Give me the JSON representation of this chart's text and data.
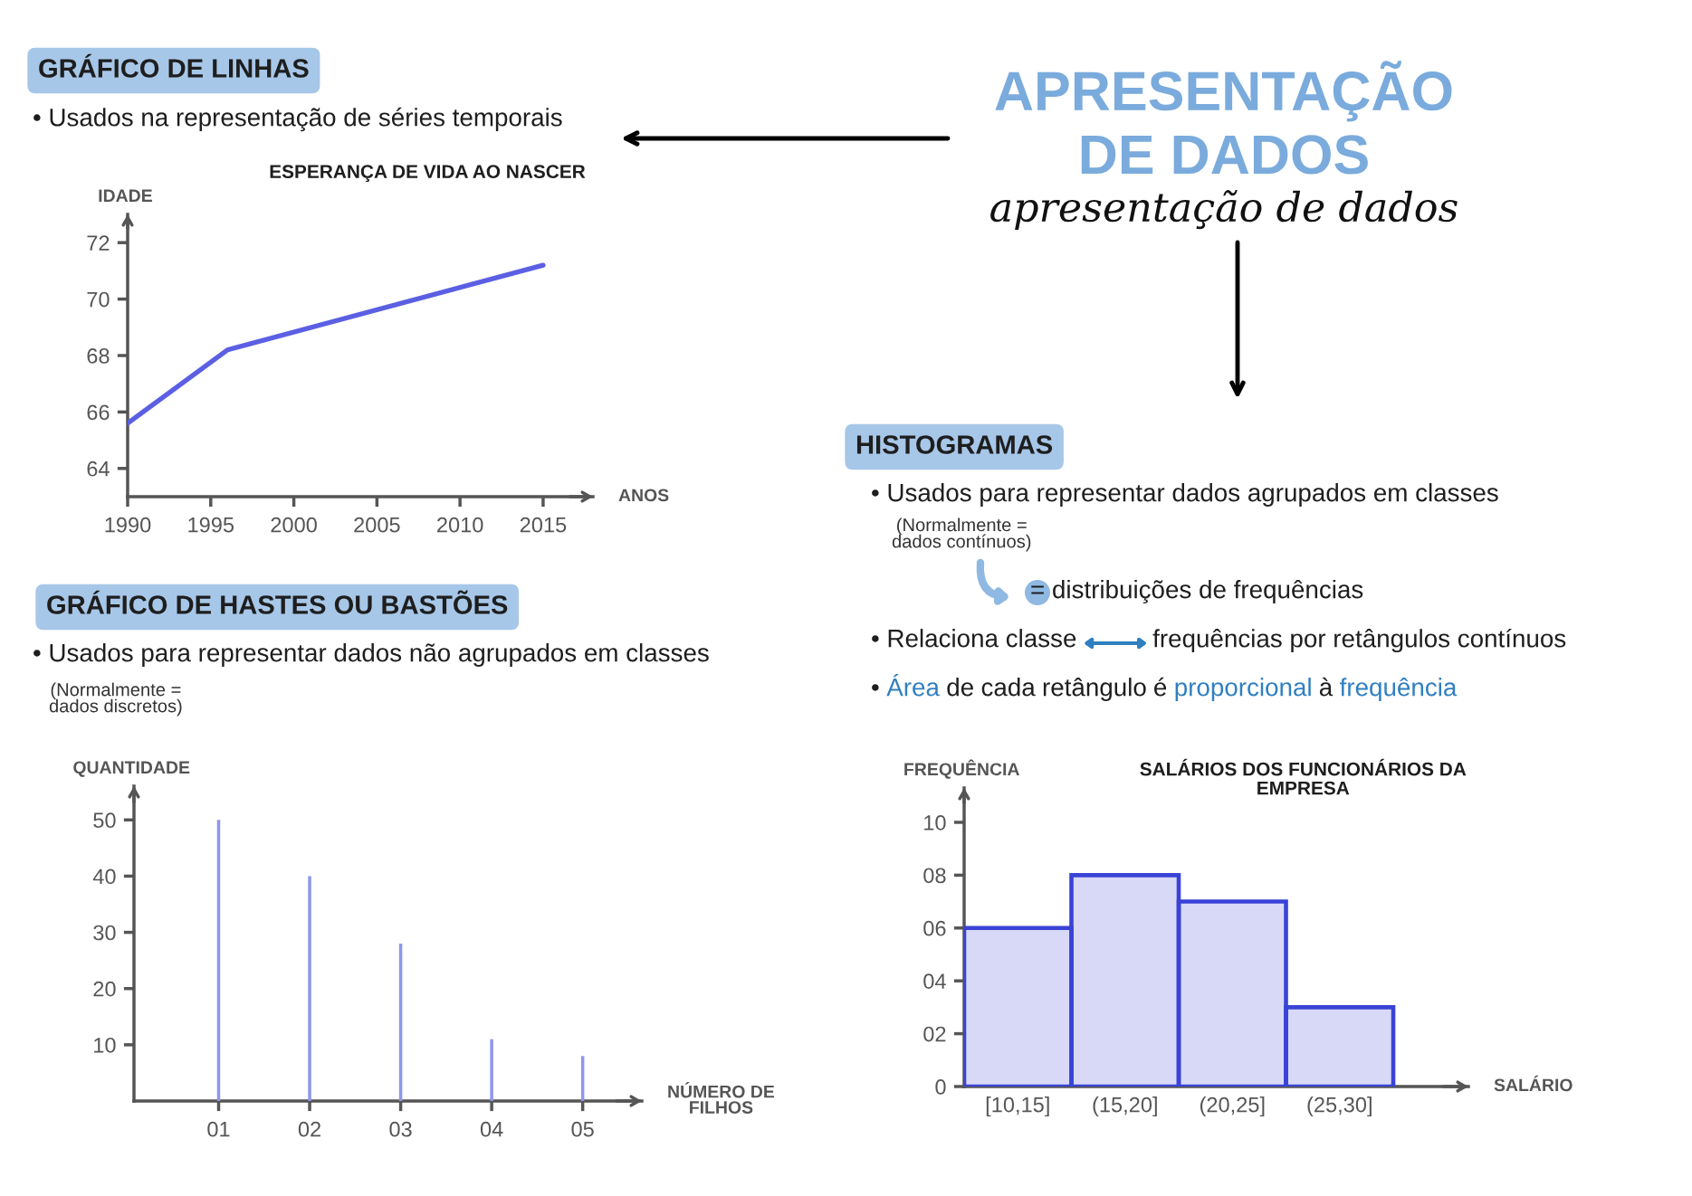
{
  "chart_data": [
    {
      "type": "other",
      "title": "APRESENTAÇÃO\nDE DADOS",
      "subtitle": "apresentação de dados"
    },
    {
      "type": "other",
      "title": "GRÁFICO DE LINHAS",
      "annotations": [
        "• Usados na representação de séries temporais"
      ]
    },
    {
      "type": "line",
      "title": "ESPERANÇA DE VIDA AO NASCER",
      "xlabel": "ANOS",
      "ylabel": "IDADE",
      "x": [
        1990,
        1996,
        2015
      ],
      "values": [
        65.6,
        68.2,
        71.2
      ],
      "color": "#5b5fe3",
      "line_style": "solid",
      "xlim": [
        1990,
        2018
      ],
      "xticks": [
        1990,
        1995,
        2000,
        2005,
        2010,
        2015
      ],
      "ylim": [
        63,
        73
      ],
      "yticks": [
        64,
        66,
        68,
        70,
        72
      ]
    },
    {
      "type": "other",
      "title": "GRÁFICO DE HASTES OU BASTÕES",
      "annotations": [
        "• Usados para representar dados não agrupados em classes",
        "(Normalmente =\ndados discretos)"
      ]
    },
    {
      "type": "bar",
      "xlabel": "NÚMERO DE\nFILHOS",
      "ylabel": "QUANTIDADE",
      "categories": [
        "01",
        "02",
        "03",
        "04",
        "05"
      ],
      "values": [
        50,
        40,
        28,
        11,
        8
      ],
      "color": "#8e97ea",
      "ylim": [
        0,
        56
      ],
      "yticks": [
        10,
        20,
        30,
        40,
        50
      ]
    },
    {
      "type": "other",
      "title": "HISTOGRAMAS",
      "annotations": [
        "• Usados para representar dados agrupados em classes",
        "(Normalmente =\ndados contínuos)",
        "= distribuições de frequências",
        "• Relaciona classe",
        "frequências por retângulos contínuos",
        "• Área de cada retângulo é proporcional à frequência"
      ]
    },
    {
      "type": "bar",
      "title": "SALÁRIOS DOS FUNCIONÁRIOS DA\nEMPRESA",
      "xlabel": "SALÁRIO",
      "ylabel": "FREQUÊNCIA",
      "categories": [
        "[10,15]",
        "(15,20]",
        "(20,25]",
        "(25,30]"
      ],
      "values": [
        6,
        8,
        7,
        3
      ],
      "color": "#3a43d6",
      "ylim": [
        0,
        11.3
      ],
      "yticks": [
        0,
        {
          "value": 2,
          "label": "02"
        },
        {
          "value": 4,
          "label": "04"
        },
        {
          "value": 6,
          "label": "06"
        },
        {
          "value": 8,
          "label": "08"
        },
        10
      ]
    }
  ]
}
